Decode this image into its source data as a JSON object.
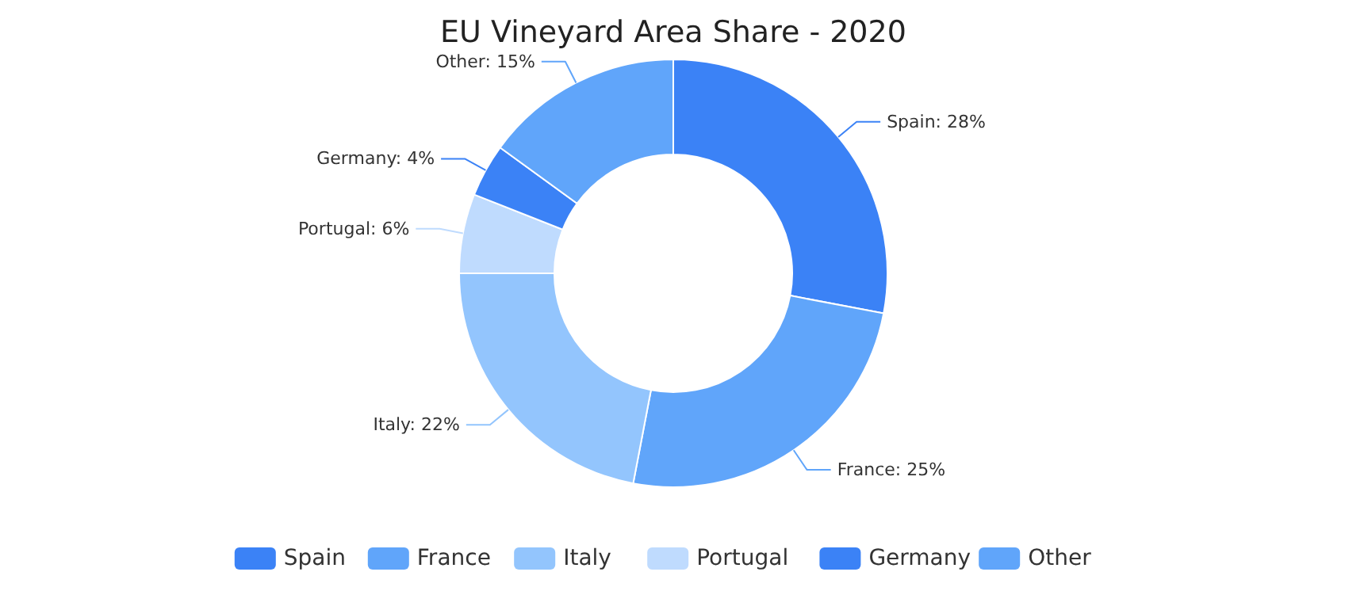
{
  "chart_data": {
    "type": "donut",
    "title": "EU Vineyard Area Share - 2020",
    "categories": [
      "Spain",
      "France",
      "Italy",
      "Portugal",
      "Germany",
      "Other"
    ],
    "values": [
      28,
      25,
      22,
      6,
      4,
      15
    ],
    "colors": [
      "#3b82f6",
      "#60a5fa",
      "#93c5fd",
      "#bfdbfe",
      "#3b82f6",
      "#60a5fa"
    ],
    "value_labels": [
      "Spain: 28%",
      "France: 25%",
      "Italy: 22%",
      "Portugal: 6%",
      "Germany: 4%",
      "Other: 15%"
    ],
    "legend": "bottom"
  }
}
